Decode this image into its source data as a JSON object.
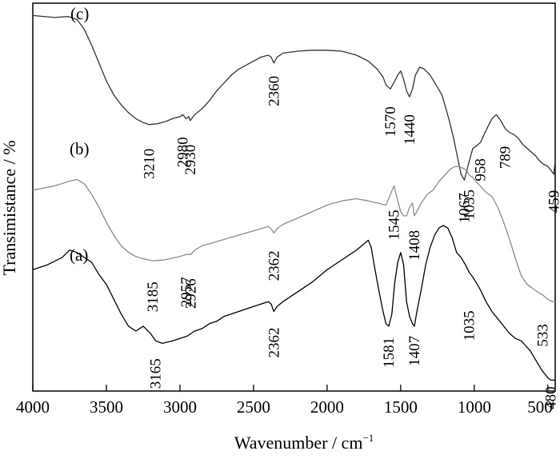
{
  "chart_data": {
    "type": "line",
    "xlabel": "Wavenumber / cm",
    "xlabel_sup": "−1",
    "ylabel": "Transimistance / %",
    "xlim": [
      4000,
      450
    ],
    "x_reversed": true,
    "xticks": [
      4000,
      3500,
      3000,
      2500,
      2000,
      1500,
      1000,
      500
    ],
    "grid": false,
    "y_units": "arbitrary (offset traces)",
    "series": [
      {
        "name": "(c)",
        "color": "#333333",
        "x": [
          4000,
          3850,
          3760,
          3700,
          3650,
          3600,
          3550,
          3500,
          3450,
          3400,
          3350,
          3300,
          3250,
          3210,
          3150,
          3100,
          3050,
          3000,
          2980,
          2960,
          2940,
          2930,
          2900,
          2850,
          2800,
          2750,
          2700,
          2650,
          2600,
          2550,
          2500,
          2450,
          2400,
          2380,
          2362,
          2340,
          2300,
          2200,
          2100,
          2000,
          1900,
          1800,
          1720,
          1660,
          1620,
          1600,
          1570,
          1540,
          1520,
          1500,
          1480,
          1460,
          1440,
          1420,
          1400,
          1370,
          1340,
          1300,
          1260,
          1220,
          1200,
          1170,
          1140,
          1110,
          1090,
          1067,
          1040,
          1010,
          990,
          958,
          920,
          880,
          850,
          820,
          790,
          760,
          730,
          700,
          670,
          640,
          610,
          580,
          560,
          530,
          500,
          480,
          459,
          450
        ],
        "y": [
          95,
          94,
          94.5,
          93,
          88,
          80,
          71,
          62,
          55,
          50,
          46,
          43,
          41,
          40,
          40.5,
          41.5,
          43,
          44,
          45,
          43,
          44,
          42,
          45,
          48,
          52,
          57,
          61,
          65,
          68,
          70,
          72,
          74,
          75,
          74,
          71,
          74,
          76,
          77,
          77.5,
          77.5,
          77,
          75,
          72,
          68,
          64,
          60,
          58,
          62,
          65,
          67,
          63,
          57,
          54,
          58,
          65,
          69,
          68,
          65,
          60,
          55,
          50,
          42,
          33,
          22,
          15,
          12,
          20,
          28,
          29,
          31,
          37,
          43,
          45,
          42,
          38,
          36,
          35,
          33,
          30,
          28,
          26,
          24,
          22,
          20,
          19,
          17,
          15,
          22
        ]
      },
      {
        "name": "(b)",
        "color": "#8c8c8c",
        "x": [
          4000,
          3850,
          3760,
          3700,
          3650,
          3600,
          3550,
          3500,
          3450,
          3400,
          3350,
          3300,
          3250,
          3185,
          3100,
          3000,
          2957,
          2926,
          2900,
          2850,
          2800,
          2750,
          2700,
          2650,
          2600,
          2550,
          2500,
          2450,
          2400,
          2380,
          2362,
          2340,
          2300,
          2200,
          2100,
          2000,
          1900,
          1800,
          1720,
          1660,
          1600,
          1570,
          1545,
          1520,
          1500,
          1480,
          1460,
          1440,
          1420,
          1408,
          1390,
          1360,
          1320,
          1280,
          1240,
          1200,
          1160,
          1130,
          1100,
          1070,
          1050,
          1035,
          1010,
          990,
          960,
          920,
          880,
          840,
          800,
          760,
          720,
          680,
          640,
          600,
          560,
          533,
          500,
          470,
          450
        ],
        "y": [
          68,
          70,
          72,
          73,
          71,
          66,
          60,
          53,
          47,
          42,
          39,
          37,
          36,
          35,
          35.5,
          37,
          38,
          38,
          40,
          42,
          43,
          44,
          45,
          46,
          47,
          48,
          49,
          50,
          51,
          50,
          48,
          50,
          52,
          55,
          58,
          61,
          63,
          64,
          63,
          62,
          61,
          66,
          70,
          63,
          58,
          56,
          56,
          60,
          62,
          56,
          58,
          62,
          66,
          68,
          72,
          75,
          78,
          79,
          79,
          78,
          77,
          75,
          74,
          72,
          70,
          67,
          65,
          60,
          53,
          45,
          36,
          28,
          24,
          22,
          20,
          19,
          17,
          16,
          16
        ]
      },
      {
        "name": "(a)",
        "color": "#000000",
        "x": [
          4000,
          3900,
          3800,
          3750,
          3700,
          3650,
          3600,
          3550,
          3500,
          3450,
          3400,
          3350,
          3300,
          3250,
          3200,
          3165,
          3120,
          3050,
          3000,
          2950,
          2900,
          2850,
          2800,
          2750,
          2700,
          2650,
          2600,
          2550,
          2500,
          2450,
          2400,
          2380,
          2362,
          2340,
          2300,
          2200,
          2100,
          2000,
          1900,
          1800,
          1760,
          1720,
          1700,
          1680,
          1650,
          1620,
          1600,
          1581,
          1560,
          1540,
          1520,
          1500,
          1480,
          1460,
          1440,
          1420,
          1407,
          1390,
          1360,
          1330,
          1300,
          1270,
          1240,
          1210,
          1180,
          1150,
          1120,
          1090,
          1060,
          1035,
          1010,
          990,
          960,
          920,
          880,
          840,
          800,
          760,
          720,
          680,
          650,
          620,
          580,
          540,
          500,
          480,
          460,
          450
        ],
        "y": [
          53,
          55,
          58,
          61,
          60,
          58,
          56,
          51,
          47,
          41,
          35,
          30,
          28,
          30,
          27,
          24,
          23,
          24,
          25,
          26,
          28,
          29,
          31,
          32,
          34,
          35,
          36,
          37,
          38,
          39,
          40,
          39,
          36,
          38,
          40,
          44,
          48,
          53,
          57,
          61,
          63,
          65,
          62,
          55,
          45,
          36,
          31,
          30,
          35,
          48,
          56,
          60,
          55,
          40,
          34,
          31,
          30,
          36,
          45,
          55,
          62,
          67,
          70,
          71,
          70,
          66,
          60,
          58,
          55,
          52,
          50,
          48,
          45,
          40,
          36,
          33,
          30,
          27,
          25,
          24,
          22,
          20,
          16,
          12,
          9,
          8,
          8,
          8
        ]
      }
    ],
    "curve_labels": [
      "(c)",
      "(b)",
      "(a)"
    ],
    "annotations": [
      {
        "text": "3210",
        "series": "(c)",
        "x": 3210
      },
      {
        "text": "2980",
        "series": "(c)",
        "x": 2980
      },
      {
        "text": "2930",
        "series": "(c)",
        "x": 2930
      },
      {
        "text": "2360",
        "series": "(c)",
        "x": 2362
      },
      {
        "text": "1570",
        "series": "(c)",
        "x": 1570
      },
      {
        "text": "1440",
        "series": "(c)",
        "x": 1440
      },
      {
        "text": "1067",
        "series": "(c)",
        "x": 1067
      },
      {
        "text": "958",
        "series": "(c)",
        "x": 958
      },
      {
        "text": "789",
        "series": "(c)",
        "x": 790
      },
      {
        "text": "459",
        "series": "(c)",
        "x": 459
      },
      {
        "text": "3185",
        "series": "(b)",
        "x": 3185
      },
      {
        "text": "2957",
        "series": "(b)",
        "x": 2957
      },
      {
        "text": "2926",
        "series": "(b)",
        "x": 2926
      },
      {
        "text": "2362",
        "series": "(b)",
        "x": 2362
      },
      {
        "text": "1545",
        "series": "(b)",
        "x": 1545
      },
      {
        "text": "1408",
        "series": "(b)",
        "x": 1408
      },
      {
        "text": "1035",
        "series": "(b)",
        "x": 1035
      },
      {
        "text": "533",
        "series": "(b)",
        "x": 533
      },
      {
        "text": "3165",
        "series": "(a)",
        "x": 3165
      },
      {
        "text": "2362",
        "series": "(a)",
        "x": 2362
      },
      {
        "text": "1581",
        "series": "(a)",
        "x": 1581
      },
      {
        "text": "1407",
        "series": "(a)",
        "x": 1407
      },
      {
        "text": "1035",
        "series": "(a)",
        "x": 1035
      },
      {
        "text": "480",
        "series": "(a)",
        "x": 480
      }
    ]
  }
}
